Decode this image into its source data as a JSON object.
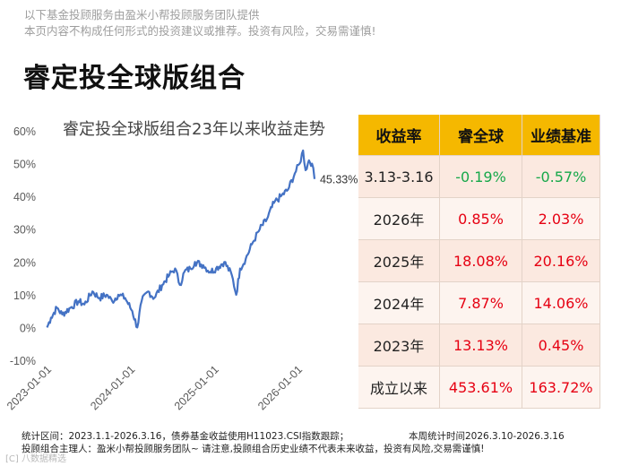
{
  "disclaimer": {
    "line1": "以下基金投顾服务由盈米小帮投顾服务团队提供",
    "line2": "本页内容不构成任何形式的投资建议或推荐。投资有风险，交易需谨慎!"
  },
  "page_title": "睿定投全球版组合",
  "colors": {
    "line": "#4472c4",
    "header": "#f5b800",
    "positive": "#e60012",
    "negative": "#17a84a"
  },
  "chart_data": {
    "type": "line",
    "title": "睿定投全球版组合23年以来收益走势",
    "xlabel": "",
    "ylabel": "",
    "ylim": [
      -0.1,
      0.6
    ],
    "y_ticks": [
      "60%",
      "50%",
      "40%",
      "30%",
      "20%",
      "10%",
      "0%",
      "-10%"
    ],
    "x_ticks": [
      "2023-01-01",
      "2024-01-01",
      "2025-01-01",
      "2026-01-01"
    ],
    "end_label": "45.33%",
    "series": [
      {
        "values": [
          [
            "2023-01-03",
            0.0
          ],
          [
            "2023-01-20",
            0.03
          ],
          [
            "2023-02-15",
            0.06
          ],
          [
            "2023-03-10",
            0.04
          ],
          [
            "2023-04-15",
            0.06
          ],
          [
            "2023-05-20",
            0.08
          ],
          [
            "2023-06-15",
            0.07
          ],
          [
            "2023-07-20",
            0.11
          ],
          [
            "2023-08-20",
            0.09
          ],
          [
            "2023-09-20",
            0.1
          ],
          [
            "2023-10-15",
            0.08
          ],
          [
            "2023-11-10",
            0.1
          ],
          [
            "2023-12-10",
            0.09
          ],
          [
            "2024-01-10",
            0.05
          ],
          [
            "2024-02-01",
            0.0
          ],
          [
            "2024-02-20",
            0.08
          ],
          [
            "2024-03-20",
            0.11
          ],
          [
            "2024-04-15",
            0.09
          ],
          [
            "2024-05-20",
            0.13
          ],
          [
            "2024-06-20",
            0.16
          ],
          [
            "2024-07-15",
            0.18
          ],
          [
            "2024-08-05",
            0.13
          ],
          [
            "2024-08-25",
            0.17
          ],
          [
            "2024-09-20",
            0.18
          ],
          [
            "2024-10-10",
            0.2
          ],
          [
            "2024-11-15",
            0.19
          ],
          [
            "2024-12-15",
            0.17
          ],
          [
            "2025-01-10",
            0.18
          ],
          [
            "2025-02-15",
            0.2
          ],
          [
            "2025-03-20",
            0.16
          ],
          [
            "2025-04-08",
            0.1
          ],
          [
            "2025-04-25",
            0.18
          ],
          [
            "2025-05-20",
            0.21
          ],
          [
            "2025-06-20",
            0.26
          ],
          [
            "2025-07-20",
            0.3
          ],
          [
            "2025-08-20",
            0.33
          ],
          [
            "2025-09-20",
            0.38
          ],
          [
            "2025-10-20",
            0.4
          ],
          [
            "2025-11-20",
            0.42
          ],
          [
            "2025-12-20",
            0.47
          ],
          [
            "2026-01-10",
            0.5
          ],
          [
            "2026-01-25",
            0.54
          ],
          [
            "2026-02-05",
            0.48
          ],
          [
            "2026-02-20",
            0.51
          ],
          [
            "2026-03-05",
            0.5
          ],
          [
            "2026-03-16",
            0.4533
          ]
        ]
      }
    ]
  },
  "table": {
    "headers": [
      "收益率",
      "睿全球",
      "业绩基准"
    ],
    "rows": [
      {
        "period": "3.13-3.16",
        "fund": "-0.19%",
        "benchmark": "-0.57%"
      },
      {
        "period": "2026年",
        "fund": "0.85%",
        "benchmark": "2.03%"
      },
      {
        "period": "2025年",
        "fund": "18.08%",
        "benchmark": "20.16%"
      },
      {
        "period": "2024年",
        "fund": "7.87%",
        "benchmark": "14.06%"
      },
      {
        "period": "2023年",
        "fund": "13.13%",
        "benchmark": "0.45%"
      },
      {
        "period": "成立以来",
        "fund": "453.61%",
        "benchmark": "163.72%"
      }
    ]
  },
  "footer": {
    "stats_left": "统计区间：2023.1.1-2026.3.16，债券基金收益使用H11023.CSI指数跟踪；",
    "stats_right": "本周统计时间2026.3.10-2026.3.16",
    "manager": "投顾组合主理人：盈米小帮投顾服务团队~ 请注意,投顾组合历史业绩不代表未来收益，投资有风险,交易需谨慎!"
  },
  "watermark": "[C] 八数据精选"
}
